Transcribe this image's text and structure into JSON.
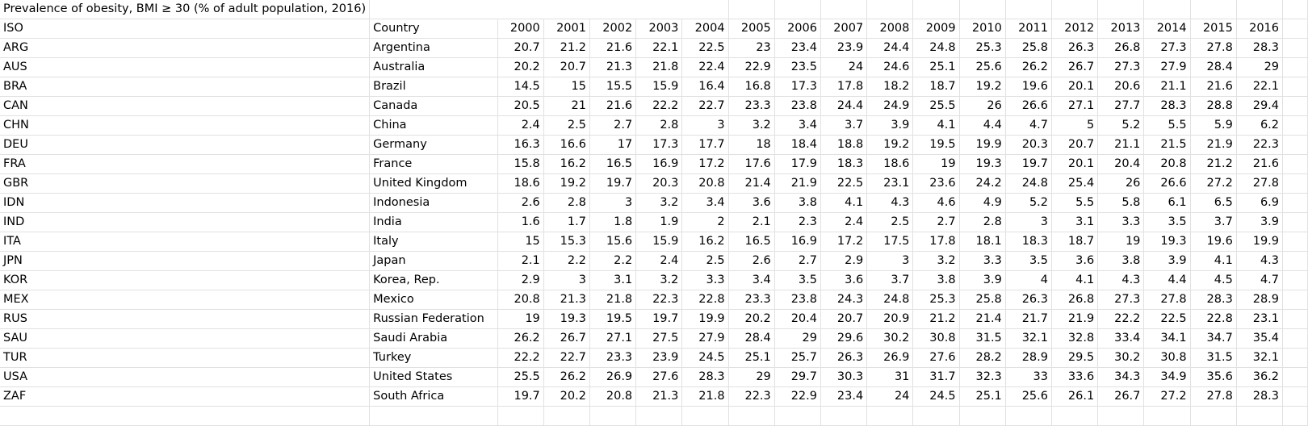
{
  "sheet": {
    "title": "Prevalence of obesity, BMI ≥ 30 (% of adult population, 2016)",
    "columns": [
      "ISO",
      "Country",
      "2000",
      "2001",
      "2002",
      "2003",
      "2004",
      "2005",
      "2006",
      "2007",
      "2008",
      "2009",
      "2010",
      "2011",
      "2012",
      "2013",
      "2014",
      "2015",
      "2016"
    ],
    "rows": [
      [
        "ARG",
        "Argentina",
        "20.7",
        "21.2",
        "21.6",
        "22.1",
        "22.5",
        "23",
        "23.4",
        "23.9",
        "24.4",
        "24.8",
        "25.3",
        "25.8",
        "26.3",
        "26.8",
        "27.3",
        "27.8",
        "28.3"
      ],
      [
        "AUS",
        "Australia",
        "20.2",
        "20.7",
        "21.3",
        "21.8",
        "22.4",
        "22.9",
        "23.5",
        "24",
        "24.6",
        "25.1",
        "25.6",
        "26.2",
        "26.7",
        "27.3",
        "27.9",
        "28.4",
        "29"
      ],
      [
        "BRA",
        "Brazil",
        "14.5",
        "15",
        "15.5",
        "15.9",
        "16.4",
        "16.8",
        "17.3",
        "17.8",
        "18.2",
        "18.7",
        "19.2",
        "19.6",
        "20.1",
        "20.6",
        "21.1",
        "21.6",
        "22.1"
      ],
      [
        "CAN",
        "Canada",
        "20.5",
        "21",
        "21.6",
        "22.2",
        "22.7",
        "23.3",
        "23.8",
        "24.4",
        "24.9",
        "25.5",
        "26",
        "26.6",
        "27.1",
        "27.7",
        "28.3",
        "28.8",
        "29.4"
      ],
      [
        "CHN",
        "China",
        "2.4",
        "2.5",
        "2.7",
        "2.8",
        "3",
        "3.2",
        "3.4",
        "3.7",
        "3.9",
        "4.1",
        "4.4",
        "4.7",
        "5",
        "5.2",
        "5.5",
        "5.9",
        "6.2"
      ],
      [
        "DEU",
        "Germany",
        "16.3",
        "16.6",
        "17",
        "17.3",
        "17.7",
        "18",
        "18.4",
        "18.8",
        "19.2",
        "19.5",
        "19.9",
        "20.3",
        "20.7",
        "21.1",
        "21.5",
        "21.9",
        "22.3"
      ],
      [
        "FRA",
        "France",
        "15.8",
        "16.2",
        "16.5",
        "16.9",
        "17.2",
        "17.6",
        "17.9",
        "18.3",
        "18.6",
        "19",
        "19.3",
        "19.7",
        "20.1",
        "20.4",
        "20.8",
        "21.2",
        "21.6"
      ],
      [
        "GBR",
        "United Kingdom",
        "18.6",
        "19.2",
        "19.7",
        "20.3",
        "20.8",
        "21.4",
        "21.9",
        "22.5",
        "23.1",
        "23.6",
        "24.2",
        "24.8",
        "25.4",
        "26",
        "26.6",
        "27.2",
        "27.8"
      ],
      [
        "IDN",
        "Indonesia",
        "2.6",
        "2.8",
        "3",
        "3.2",
        "3.4",
        "3.6",
        "3.8",
        "4.1",
        "4.3",
        "4.6",
        "4.9",
        "5.2",
        "5.5",
        "5.8",
        "6.1",
        "6.5",
        "6.9"
      ],
      [
        "IND",
        "India",
        "1.6",
        "1.7",
        "1.8",
        "1.9",
        "2",
        "2.1",
        "2.3",
        "2.4",
        "2.5",
        "2.7",
        "2.8",
        "3",
        "3.1",
        "3.3",
        "3.5",
        "3.7",
        "3.9"
      ],
      [
        "ITA",
        "Italy",
        "15",
        "15.3",
        "15.6",
        "15.9",
        "16.2",
        "16.5",
        "16.9",
        "17.2",
        "17.5",
        "17.8",
        "18.1",
        "18.3",
        "18.7",
        "19",
        "19.3",
        "19.6",
        "19.9"
      ],
      [
        "JPN",
        "Japan",
        "2.1",
        "2.2",
        "2.2",
        "2.4",
        "2.5",
        "2.6",
        "2.7",
        "2.9",
        "3",
        "3.2",
        "3.3",
        "3.5",
        "3.6",
        "3.8",
        "3.9",
        "4.1",
        "4.3"
      ],
      [
        "KOR",
        "Korea, Rep.",
        "2.9",
        "3",
        "3.1",
        "3.2",
        "3.3",
        "3.4",
        "3.5",
        "3.6",
        "3.7",
        "3.8",
        "3.9",
        "4",
        "4.1",
        "4.3",
        "4.4",
        "4.5",
        "4.7"
      ],
      [
        "MEX",
        "Mexico",
        "20.8",
        "21.3",
        "21.8",
        "22.3",
        "22.8",
        "23.3",
        "23.8",
        "24.3",
        "24.8",
        "25.3",
        "25.8",
        "26.3",
        "26.8",
        "27.3",
        "27.8",
        "28.3",
        "28.9"
      ],
      [
        "RUS",
        "Russian Federation",
        "19",
        "19.3",
        "19.5",
        "19.7",
        "19.9",
        "20.2",
        "20.4",
        "20.7",
        "20.9",
        "21.2",
        "21.4",
        "21.7",
        "21.9",
        "22.2",
        "22.5",
        "22.8",
        "23.1"
      ],
      [
        "SAU",
        "Saudi Arabia",
        "26.2",
        "26.7",
        "27.1",
        "27.5",
        "27.9",
        "28.4",
        "29",
        "29.6",
        "30.2",
        "30.8",
        "31.5",
        "32.1",
        "32.8",
        "33.4",
        "34.1",
        "34.7",
        "35.4"
      ],
      [
        "TUR",
        "Turkey",
        "22.2",
        "22.7",
        "23.3",
        "23.9",
        "24.5",
        "25.1",
        "25.7",
        "26.3",
        "26.9",
        "27.6",
        "28.2",
        "28.9",
        "29.5",
        "30.2",
        "30.8",
        "31.5",
        "32.1"
      ],
      [
        "USA",
        "United States",
        "25.5",
        "26.2",
        "26.9",
        "27.6",
        "28.3",
        "29",
        "29.7",
        "30.3",
        "31",
        "31.7",
        "32.3",
        "33",
        "33.6",
        "34.3",
        "34.9",
        "35.6",
        "36.2"
      ],
      [
        "ZAF",
        "South Africa",
        "19.7",
        "20.2",
        "20.8",
        "21.3",
        "21.8",
        "22.3",
        "22.9",
        "23.4",
        "24",
        "24.5",
        "25.1",
        "25.6",
        "26.1",
        "26.7",
        "27.2",
        "27.8",
        "28.3"
      ]
    ]
  }
}
